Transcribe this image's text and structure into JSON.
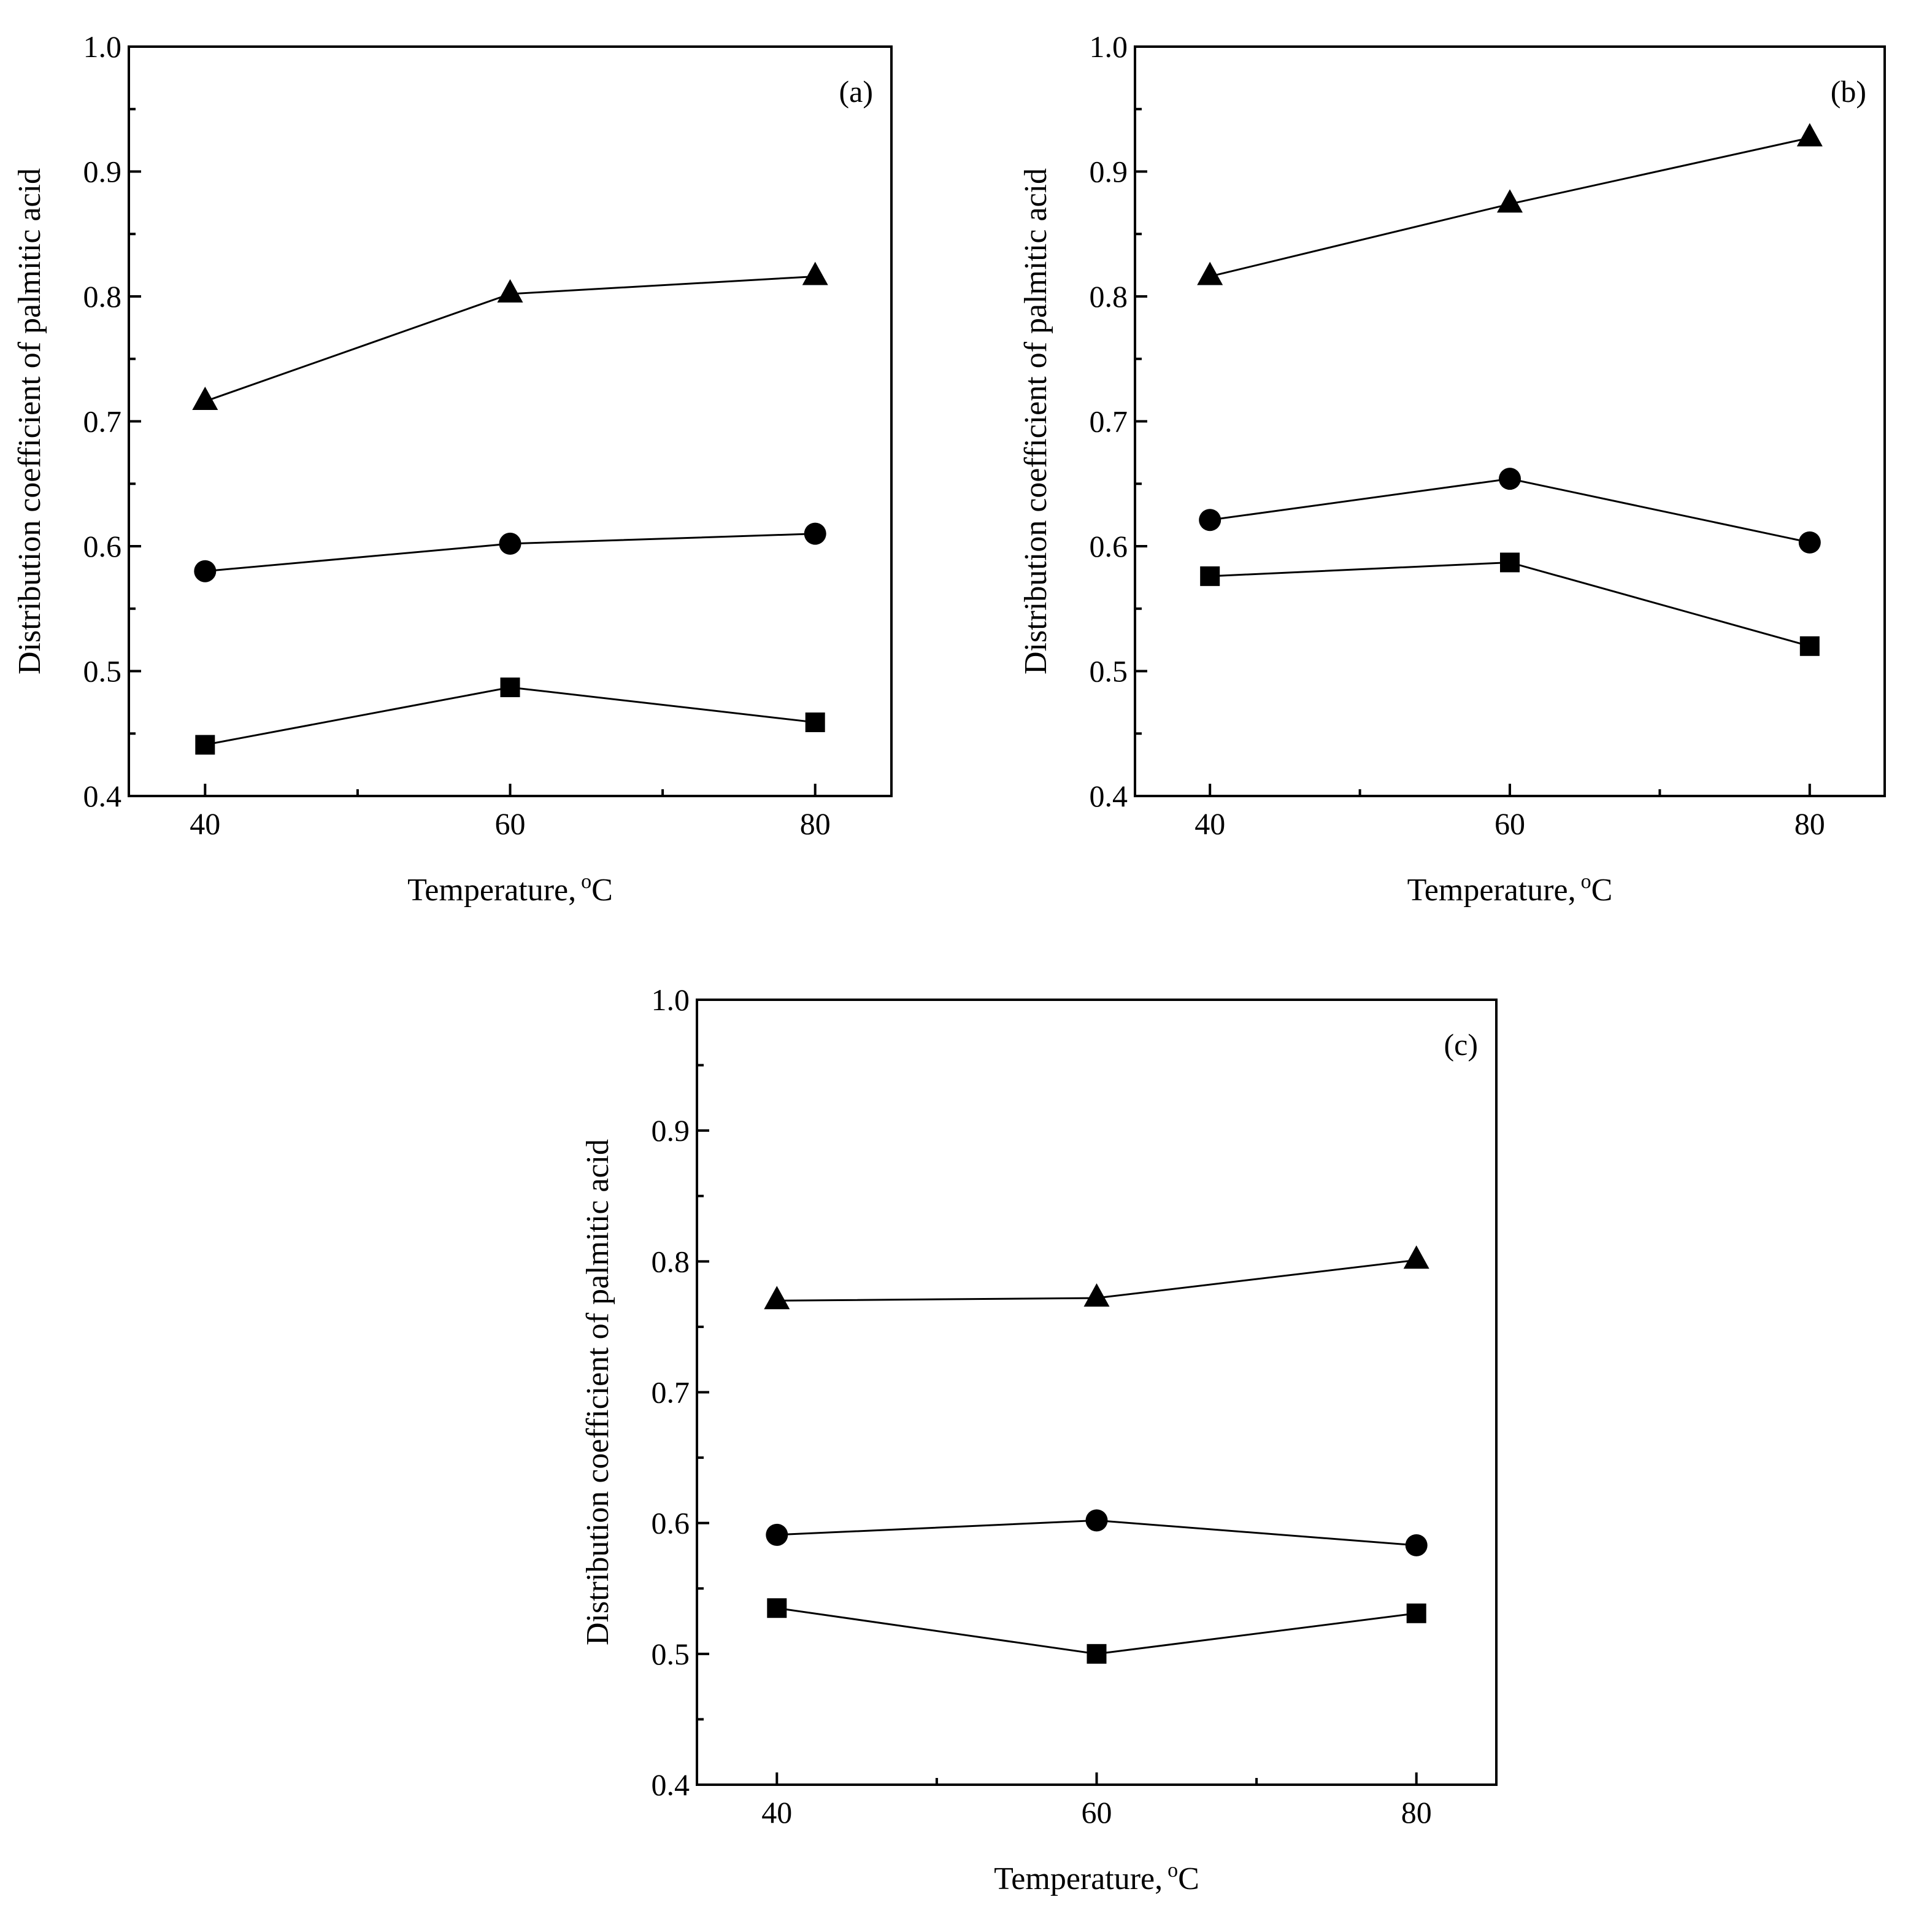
{
  "figure": {
    "marker_color": "#000000",
    "line_color": "#000000",
    "background": "#ffffff"
  },
  "chart_data": [
    {
      "panel": "(a)",
      "type": "line",
      "x": [
        40,
        60,
        80
      ],
      "xlim": [
        35,
        85
      ],
      "ylim": [
        0.4,
        1.0
      ],
      "x_ticks": [
        "40",
        "60",
        "80"
      ],
      "y_ticks": [
        "0.4",
        "0.5",
        "0.6",
        "0.7",
        "0.8",
        "0.9",
        "1.0"
      ],
      "xlabel": "Temperature,",
      "xlabel_unit_sup": "o",
      "xlabel_unit": "C",
      "ylabel": "Distribution coefficient of palmitic acid",
      "series": [
        {
          "marker": "triangle",
          "values": [
            0.716,
            0.802,
            0.816
          ]
        },
        {
          "marker": "circle",
          "values": [
            0.58,
            0.602,
            0.61
          ]
        },
        {
          "marker": "square",
          "values": [
            0.441,
            0.487,
            0.459
          ]
        }
      ]
    },
    {
      "panel": "(b)",
      "type": "line",
      "x": [
        40,
        60,
        80
      ],
      "xlim": [
        35,
        85
      ],
      "ylim": [
        0.4,
        1.0
      ],
      "x_ticks": [
        "40",
        "60",
        "80"
      ],
      "y_ticks": [
        "0.4",
        "0.5",
        "0.6",
        "0.7",
        "0.8",
        "0.9",
        "1.0"
      ],
      "xlabel": "Temperature,",
      "xlabel_unit_sup": "o",
      "xlabel_unit": "C",
      "ylabel": "Distribution coefficient of palmitic acid",
      "series": [
        {
          "marker": "triangle",
          "values": [
            0.816,
            0.874,
            0.927
          ]
        },
        {
          "marker": "circle",
          "values": [
            0.621,
            0.654,
            0.603
          ]
        },
        {
          "marker": "square",
          "values": [
            0.576,
            0.587,
            0.52
          ]
        }
      ]
    },
    {
      "panel": "(c)",
      "type": "line",
      "x": [
        40,
        60,
        80
      ],
      "xlim": [
        35,
        85
      ],
      "ylim": [
        0.4,
        1.0
      ],
      "x_ticks": [
        "40",
        "60",
        "80"
      ],
      "y_ticks": [
        "0.4",
        "0.5",
        "0.6",
        "0.7",
        "0.8",
        "0.9",
        "1.0"
      ],
      "xlabel": "Temperature,",
      "xlabel_unit_sup": "o",
      "xlabel_unit": "C",
      "ylabel": "Distribution coefficient of palmitic acid",
      "series": [
        {
          "marker": "triangle",
          "values": [
            0.77,
            0.772,
            0.801
          ]
        },
        {
          "marker": "circle",
          "values": [
            0.591,
            0.602,
            0.583
          ]
        },
        {
          "marker": "square",
          "values": [
            0.535,
            0.5,
            0.531
          ]
        }
      ]
    }
  ]
}
